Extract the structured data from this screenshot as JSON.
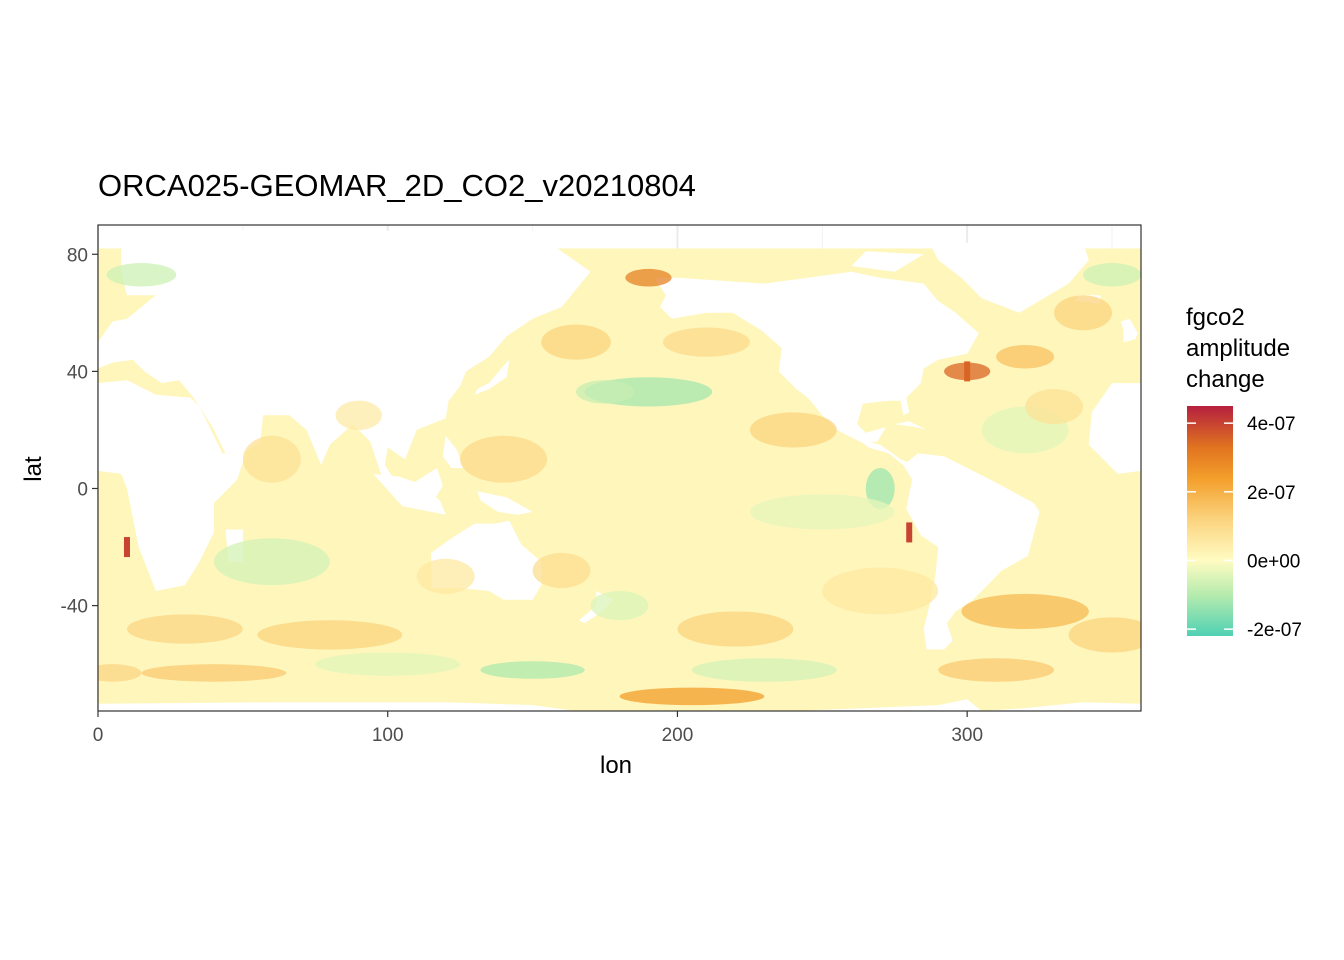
{
  "chart_data": {
    "type": "heatmap",
    "title": "ORCA025-GEOMAR_2D_CO2_v20210804",
    "xlabel": "lon",
    "ylabel": "lat",
    "xlim": [
      0,
      360
    ],
    "ylim": [
      -76,
      90
    ],
    "x_ticks": [
      0,
      100,
      200,
      300
    ],
    "x_tick_labels": [
      "0",
      "100",
      "200",
      "300"
    ],
    "y_ticks": [
      80,
      40,
      0,
      -40
    ],
    "y_tick_labels": [
      "80",
      "40",
      "0",
      "-40"
    ],
    "grid": true,
    "legend": {
      "title_lines": [
        "fgco2",
        "amplitude",
        "change"
      ],
      "placement": "right",
      "range": [
        -2.2e-07,
        4.5e-07
      ],
      "ticks": [
        4e-07,
        2e-07,
        0,
        -2e-07
      ],
      "tick_labels": [
        "4e-07",
        "2e-07",
        "0e+00",
        "-2e-07"
      ],
      "colors": [
        "#4fd1b3",
        "#b6ebae",
        "#fffcc2",
        "#fbd37e",
        "#f39e2a",
        "#e07320",
        "#b5203f"
      ],
      "color_stops": [
        -2.2e-07,
        -1e-07,
        0,
        1.2e-07,
        2.4e-07,
        3.3e-07,
        4.5e-07
      ]
    },
    "notes_visible_features": [
      {
        "label": "",
        "lon": 190,
        "lat": 33,
        "value": -1.2e-07
      },
      {
        "label": "",
        "lon": 270,
        "lat": 0,
        "value": -1.3e-07
      },
      {
        "label": "",
        "lon": 150,
        "lat": -62,
        "value": -1.1e-07
      },
      {
        "label": "",
        "lon": 10,
        "lat": -20,
        "value": 4e-07
      },
      {
        "label": "",
        "lon": 280,
        "lat": -15,
        "value": 4e-07
      },
      {
        "label": "",
        "lon": 300,
        "lat": 40,
        "value": 3.5e-07
      },
      {
        "label": "",
        "lon": 190,
        "lat": 73,
        "value": 3e-07
      },
      {
        "label": "",
        "lon": 200,
        "lat": -72,
        "value": 2.4e-07
      },
      {
        "label": "",
        "lon": 320,
        "lat": -42,
        "value": 1.8e-07
      }
    ]
  }
}
